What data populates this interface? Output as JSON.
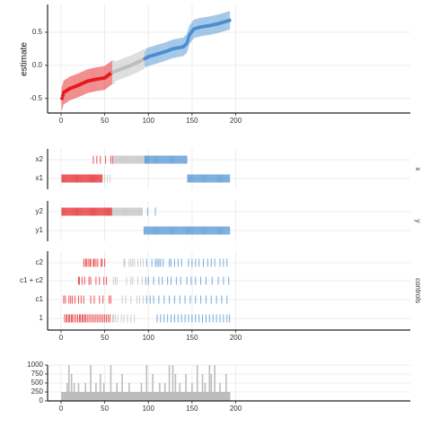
{
  "chart_data": {
    "type": "scatter",
    "description_free": true,
    "x_axis": {
      "range": [
        0,
        200
      ],
      "ticks": [
        0,
        50,
        100,
        150,
        200
      ]
    },
    "colors": {
      "negative": "#e41a1c",
      "null": "#bdbdbd",
      "positive": "#4a8fd0",
      "grid": "#ececec",
      "axis": "#222222"
    },
    "estimate_panel": {
      "ylabel": "estimate",
      "yticks": [
        0.5,
        0.0,
        -0.5
      ],
      "ytick_labels": [
        "0.5",
        "0.0",
        "-0.5"
      ],
      "ylim": [
        -0.72,
        0.92
      ],
      "n_specs": 193,
      "curve": [
        [
          1,
          -0.5
        ],
        [
          3,
          -0.41
        ],
        [
          10,
          -0.35
        ],
        [
          20,
          -0.3
        ],
        [
          30,
          -0.24
        ],
        [
          40,
          -0.21
        ],
        [
          50,
          -0.19
        ],
        [
          58,
          -0.11
        ],
        [
          70,
          -0.05
        ],
        [
          80,
          0.0
        ],
        [
          90,
          0.06
        ],
        [
          100,
          0.13
        ],
        [
          110,
          0.17
        ],
        [
          120,
          0.21
        ],
        [
          128,
          0.25
        ],
        [
          140,
          0.28
        ],
        [
          144,
          0.33
        ],
        [
          147,
          0.46
        ],
        [
          152,
          0.55
        ],
        [
          160,
          0.58
        ],
        [
          170,
          0.6
        ],
        [
          180,
          0.63
        ],
        [
          188,
          0.66
        ],
        [
          193,
          0.68
        ]
      ],
      "ci_half_width": [
        [
          1,
          0.18
        ],
        [
          60,
          0.18
        ],
        [
          61,
          0.15
        ],
        [
          95,
          0.12
        ],
        [
          96,
          0.14
        ],
        [
          193,
          0.14
        ]
      ],
      "class_breaks": {
        "negative_last": 58,
        "null_last": 95
      }
    },
    "x_panel": {
      "strip_label": "x",
      "rows": [
        "x2",
        "x1"
      ],
      "x2_negative": [
        37,
        41,
        45,
        51,
        57,
        59
      ],
      "x2_null_range": [
        60,
        100
      ],
      "x2_positive_range": [
        96,
        144
      ],
      "x1_negative_range": [
        1,
        47
      ],
      "x1_extra": [
        50,
        53,
        56
      ],
      "x1_positive_range": [
        145,
        193
      ]
    },
    "y_panel": {
      "strip_label": "y",
      "rows": [
        "y2",
        "y1"
      ],
      "y2_negative_range": [
        1,
        58
      ],
      "y2_null_range": [
        59,
        93
      ],
      "y2_extra_positive": [
        99,
        108
      ],
      "y1_positive_range": [
        95,
        193
      ]
    },
    "controls_panel": {
      "strip_label": "controls",
      "rows": [
        "c2",
        "c1 + c2",
        "c1",
        "1"
      ],
      "c2": [
        26,
        28,
        29,
        31,
        33,
        34,
        37,
        38,
        40,
        42,
        46,
        47,
        50,
        72,
        73,
        78,
        80,
        82,
        84,
        88,
        91,
        94,
        98,
        104,
        108,
        110,
        112,
        114,
        117,
        124,
        126,
        130,
        134,
        138,
        146,
        150,
        154,
        158,
        163,
        168,
        172,
        176,
        182,
        186,
        190
      ],
      "c1c2": [
        20,
        21,
        24,
        27,
        32,
        34,
        40,
        44,
        49,
        52,
        60,
        62,
        64,
        75,
        80,
        82,
        88,
        93,
        97,
        100,
        106,
        112,
        116,
        122,
        126,
        132,
        137,
        144,
        149,
        154,
        160,
        166,
        173,
        180,
        186,
        192
      ],
      "c1": [
        3,
        5,
        9,
        11,
        13,
        16,
        20,
        23,
        26,
        34,
        38,
        44,
        48,
        55,
        57,
        70,
        74,
        80,
        87,
        90,
        94,
        98,
        102,
        106,
        112,
        118,
        124,
        130,
        136,
        142,
        148,
        154,
        160,
        166,
        172,
        178,
        184,
        190
      ],
      "one": [
        4,
        6,
        7,
        9,
        10,
        12,
        13,
        15,
        17,
        19,
        21,
        22,
        24,
        25,
        27,
        28,
        30,
        32,
        34,
        36,
        38,
        40,
        42,
        44,
        46,
        48,
        50,
        52,
        54,
        56,
        59,
        60,
        62,
        65,
        69,
        72,
        76,
        80,
        84,
        110,
        114,
        118,
        122,
        126,
        130,
        134,
        138,
        142,
        146,
        150,
        154,
        158,
        162,
        166,
        170,
        174,
        178,
        182,
        186,
        190,
        193
      ]
    },
    "samples_panel": {
      "yticks": [
        1000,
        750,
        500,
        250,
        0
      ],
      "ytick_labels": [
        "1000",
        "750",
        "500",
        "250",
        "0"
      ],
      "ylim": [
        0,
        1000
      ],
      "baseline": 250,
      "peaks": [
        [
          7,
          500
        ],
        [
          9,
          1000
        ],
        [
          12,
          750
        ],
        [
          15,
          500
        ],
        [
          20,
          500
        ],
        [
          25,
          250
        ],
        [
          28,
          500
        ],
        [
          34,
          1000
        ],
        [
          40,
          500
        ],
        [
          45,
          750
        ],
        [
          49,
          500
        ],
        [
          57,
          1000
        ],
        [
          64,
          500
        ],
        [
          70,
          750
        ],
        [
          78,
          500
        ],
        [
          85,
          250
        ],
        [
          92,
          500
        ],
        [
          98,
          1000
        ],
        [
          105,
          750
        ],
        [
          113,
          500
        ],
        [
          119,
          500
        ],
        [
          124,
          1000
        ],
        [
          128,
          1000
        ],
        [
          131,
          750
        ],
        [
          136,
          500
        ],
        [
          143,
          750
        ],
        [
          150,
          500
        ],
        [
          156,
          1000
        ],
        [
          162,
          750
        ],
        [
          165,
          500
        ],
        [
          170,
          1000
        ],
        [
          172,
          750
        ],
        [
          176,
          1000
        ],
        [
          182,
          500
        ],
        [
          189,
          750
        ]
      ]
    }
  }
}
